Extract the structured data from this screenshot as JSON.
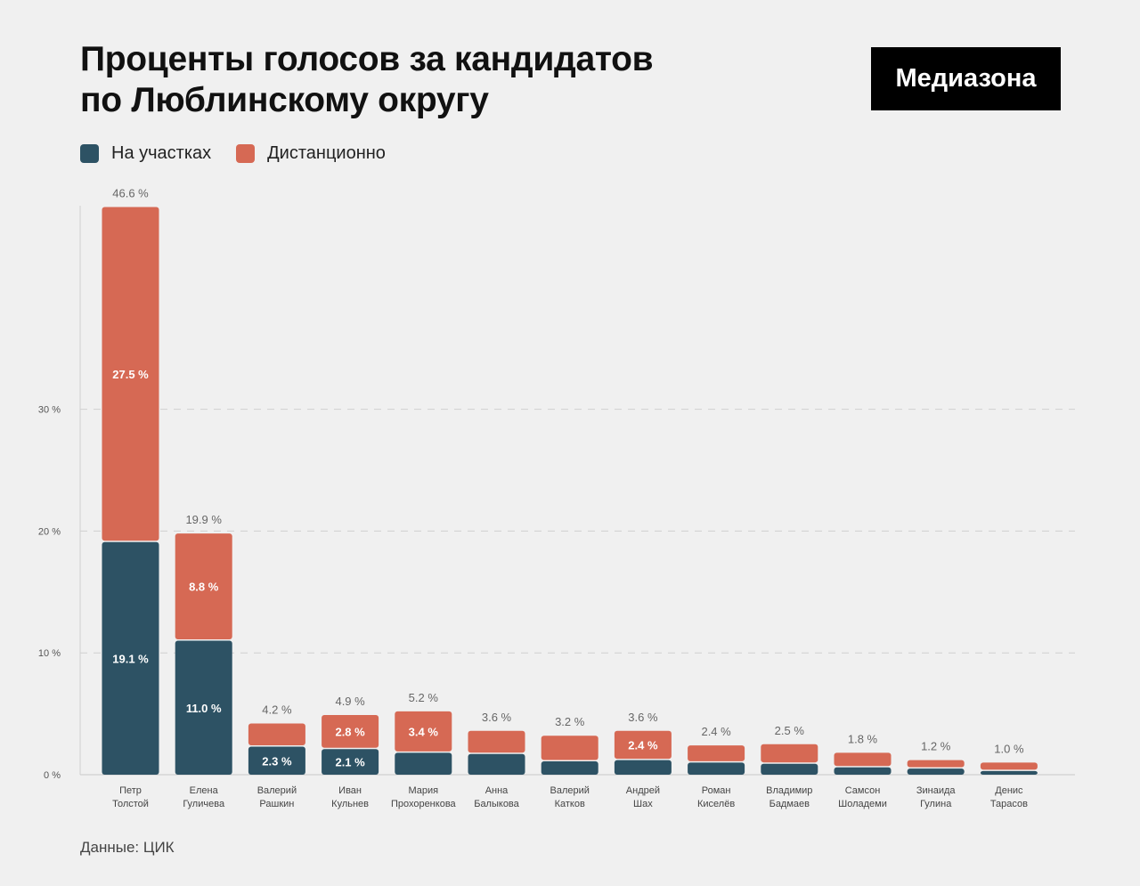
{
  "header": {
    "title_line1": "Проценты голосов за кандидатов",
    "title_line2": "по Люблинскому округу",
    "logo_text": "Медиазона"
  },
  "legend": [
    {
      "label": "На участках",
      "color": "#2d5264"
    },
    {
      "label": "Дистанционно",
      "color": "#d66954"
    }
  ],
  "footer": {
    "source": "Данные: ЦИК"
  },
  "chart_data": {
    "type": "bar",
    "stacked": true,
    "title": "Проценты голосов за кандидатов по Люблинскому округу",
    "ylim": [
      0,
      46.6
    ],
    "yticks": [
      0,
      10,
      20,
      30
    ],
    "ytick_labels": [
      "0 %",
      "10 %",
      "20 %",
      "30 %"
    ],
    "grid": true,
    "legend_position": "top-left",
    "categories": [
      [
        "Петр",
        "Толстой"
      ],
      [
        "Елена",
        "Гуличева"
      ],
      [
        "Валерий",
        "Рашкин"
      ],
      [
        "Иван",
        "Кульнев"
      ],
      [
        "Мария",
        "Прохоренкова"
      ],
      [
        "Анна",
        "Балыкова"
      ],
      [
        "Валерий",
        "Катков"
      ],
      [
        "Андрей",
        "Шах"
      ],
      [
        "Роман",
        "Киселёв"
      ],
      [
        "Владимир",
        "Бадмаев"
      ],
      [
        "Самсон",
        "Шоладеми"
      ],
      [
        "Зинаида",
        "Гулина"
      ],
      [
        "Денис",
        "Тарасов"
      ]
    ],
    "series": [
      {
        "name": "На участках",
        "color": "#2d5264",
        "values": [
          19.1,
          11.0,
          2.3,
          2.1,
          1.8,
          1.7,
          1.1,
          1.2,
          1.0,
          0.9,
          0.6,
          0.5,
          0.3
        ],
        "value_labels": [
          "19.1 %",
          "11.0 %",
          "2.3 %",
          "2.1 %",
          "",
          "",
          "",
          "",
          "",
          "",
          "",
          "",
          ""
        ]
      },
      {
        "name": "Дистанционно",
        "color": "#d66954",
        "values": [
          27.5,
          8.8,
          1.9,
          2.8,
          3.4,
          1.9,
          2.1,
          2.4,
          1.4,
          1.6,
          1.2,
          0.7,
          0.7
        ],
        "value_labels": [
          "27.5 %",
          "8.8 %",
          "",
          "2.8 %",
          "3.4 %",
          "",
          "",
          "2.4 %",
          "",
          "",
          "",
          "",
          ""
        ]
      }
    ],
    "totals": [
      46.6,
      19.9,
      4.2,
      4.9,
      5.2,
      3.6,
      3.2,
      3.6,
      2.4,
      2.5,
      1.8,
      1.2,
      1.0
    ],
    "total_labels": [
      "46.6 %",
      "19.9 %",
      "4.2 %",
      "4.9 %",
      "5.2 %",
      "3.6 %",
      "3.2 %",
      "3.6 %",
      "2.4 %",
      "2.5 %",
      "1.8 %",
      "1.2 %",
      "1.0 %"
    ]
  }
}
